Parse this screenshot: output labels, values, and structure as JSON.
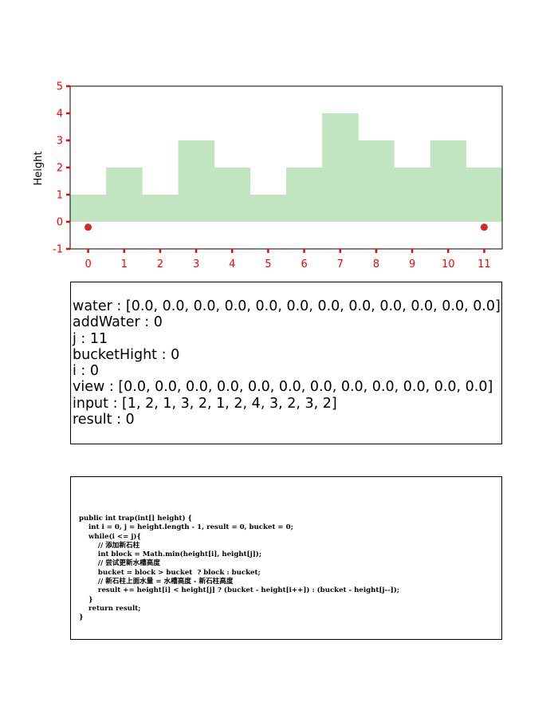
{
  "chart_data": {
    "type": "bar",
    "ylabel": "Height",
    "xlabel": "",
    "title": "",
    "categories": [
      0,
      1,
      2,
      3,
      4,
      5,
      6,
      7,
      8,
      9,
      10,
      11
    ],
    "values": [
      1,
      2,
      1,
      3,
      2,
      1,
      2,
      4,
      3,
      2,
      3,
      2
    ],
    "markers": [
      {
        "x": 0,
        "y": -0.2
      },
      {
        "x": 11,
        "y": -0.2
      }
    ],
    "ylim": [
      -1,
      5
    ],
    "yticks": [
      -1,
      0,
      1,
      2,
      3,
      4,
      5
    ],
    "bar_color": "#c1e4c1",
    "marker_color": "#d62728",
    "tick_color": "#ff0000",
    "grid": false
  },
  "variables": [
    "water : [0.0, 0.0, 0.0, 0.0, 0.0, 0.0, 0.0, 0.0, 0.0, 0.0, 0.0, 0.0]",
    "addWater : 0",
    "j : 11",
    "bucketHight : 0",
    "i : 0",
    "view : [0.0, 0.0, 0.0, 0.0, 0.0, 0.0, 0.0, 0.0, 0.0, 0.0, 0.0, 0.0]",
    "input : [1, 2, 1, 3, 2, 1, 2, 4, 3, 2, 3, 2]",
    "result : 0"
  ],
  "code": "public int trap(int[] height) {\n    int i = 0, j = height.length - 1, result = 0, bucket = 0;\n    while(i <= j){\n        // 添加新石柱\n        int block = Math.min(height[i], height[j]);\n        // 尝试更新水槽高度\n        bucket = block > bucket  ? block : bucket;\n        // 新石柱上面水量 = 水槽高度 - 新石柱高度\n        result += height[i] < height[j] ? (bucket - height[i++]) : (bucket - height[j--]);\n    }\n    return result;\n}"
}
